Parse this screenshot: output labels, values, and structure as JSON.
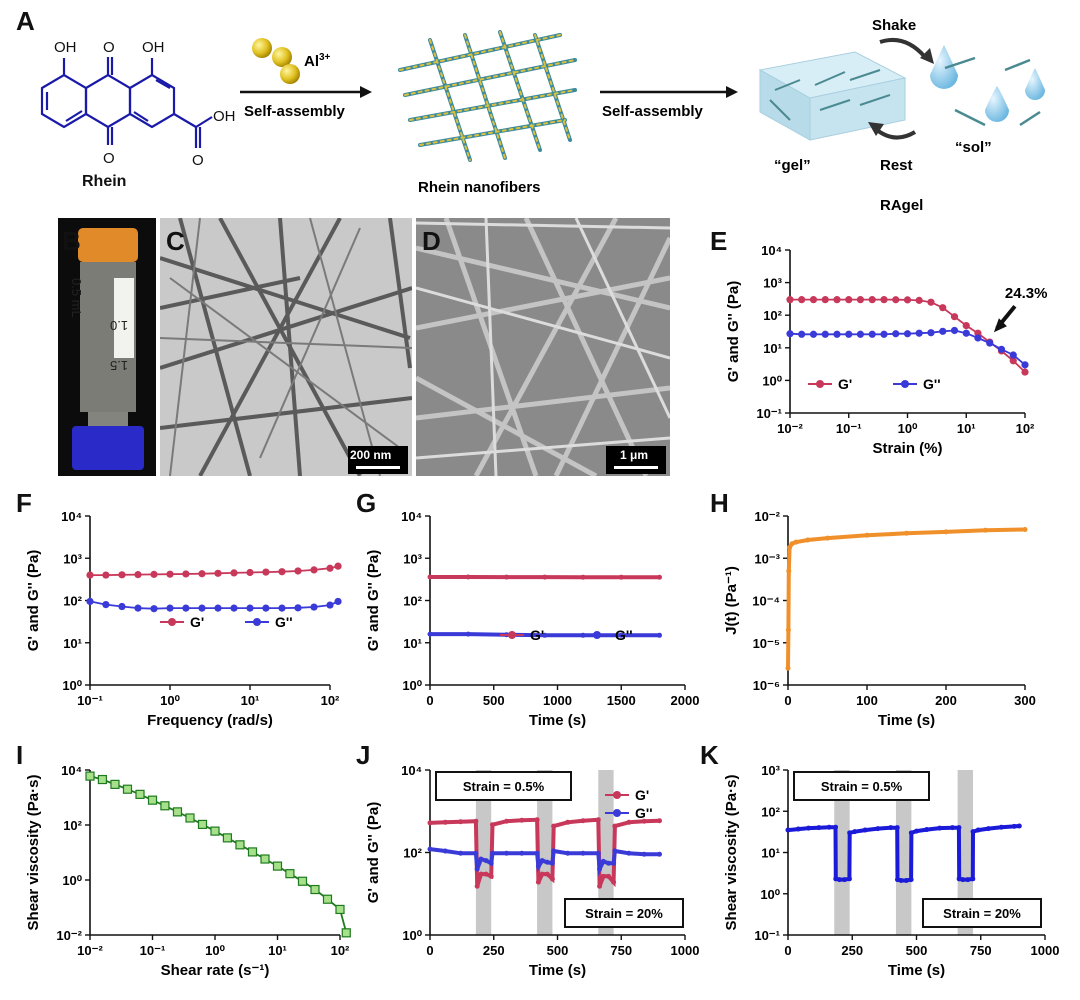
{
  "panels": {
    "A": "A",
    "B": "B",
    "C": "C",
    "D": "D",
    "E": "E",
    "F": "F",
    "G": "G",
    "H": "H",
    "I": "I",
    "J": "J",
    "K": "K"
  },
  "scheme": {
    "rhein_label": "Rhein",
    "oh_left": "OH",
    "oh_right": "OH",
    "o_top": "O",
    "o_bottom": "O",
    "acid": "OH",
    "acid_o": "O",
    "al_label": "Al",
    "al_sup": "3+",
    "step1": "Self-assembly",
    "nanofibers": "Rhein nanofibers",
    "step2": "Self-assembly",
    "shake": "Shake",
    "rest": "Rest",
    "gel": "“gel”",
    "sol": "“sol”",
    "ragel": "RAgel"
  },
  "images": {
    "vial_marks": [
      "0.5 mL",
      "1.0",
      "1.5"
    ],
    "tem_scale": "200 nm",
    "sem_scale": "1 μm"
  },
  "colors": {
    "gprime": "#c8385a",
    "gdouble": "#3a3ad8",
    "jt": "#f0902a",
    "visc": "#1a1ad8",
    "shear": "#1e7a1e",
    "shear_fill": "#a6e08a",
    "band": "#c8c8c8"
  },
  "chart_data": [
    {
      "id": "E",
      "type": "line",
      "xscale": "log",
      "yscale": "log",
      "xlabel": "Strain (%)",
      "ylabel": "G' and G'' (Pa)",
      "xlim": [
        0.01,
        100
      ],
      "ylim": [
        0.1,
        10000
      ],
      "xticks": [
        "10⁻²",
        "10⁻¹",
        "10⁰",
        "10¹",
        "10²"
      ],
      "yticks": [
        "10⁻¹",
        "10⁰",
        "10¹",
        "10²",
        "10³",
        "10⁴"
      ],
      "annotation": "24.3%",
      "annotation_x": 24.3,
      "legend": [
        "G'",
        "G''"
      ],
      "series": [
        {
          "name": "G'",
          "x": [
            0.01,
            0.0158,
            0.0251,
            0.0398,
            0.0631,
            0.1,
            0.158,
            0.251,
            0.398,
            0.631,
            1,
            1.58,
            2.51,
            3.98,
            6.31,
            10,
            15.8,
            25.1,
            39.8,
            63.1,
            100
          ],
          "values": [
            300,
            300,
            300,
            300,
            300,
            300,
            300,
            300,
            300,
            298,
            295,
            285,
            250,
            170,
            90,
            48,
            28,
            15,
            8,
            4,
            1.8
          ]
        },
        {
          "name": "G''",
          "x": [
            0.01,
            0.0158,
            0.0251,
            0.0398,
            0.0631,
            0.1,
            0.158,
            0.251,
            0.398,
            0.631,
            1,
            1.58,
            2.51,
            3.98,
            6.31,
            10,
            15.8,
            25.1,
            39.8,
            63.1,
            100
          ],
          "values": [
            27,
            26,
            26,
            26,
            26,
            26,
            26,
            26,
            26,
            27,
            27,
            28,
            29,
            32,
            34,
            28,
            20,
            14,
            9,
            6,
            3
          ]
        }
      ]
    },
    {
      "id": "F",
      "type": "line",
      "xscale": "log",
      "yscale": "log",
      "xlabel": "Frequency (rad/s)",
      "ylabel": "G' and G'' (Pa)",
      "xlim": [
        0.1,
        100
      ],
      "ylim": [
        1,
        10000
      ],
      "xticks": [
        "10⁻¹",
        "10⁰",
        "10¹",
        "10²"
      ],
      "yticks": [
        "10⁰",
        "10¹",
        "10²",
        "10³",
        "10⁴"
      ],
      "legend": [
        "G'",
        "G''"
      ],
      "series": [
        {
          "name": "G'",
          "x": [
            0.1,
            0.158,
            0.251,
            0.398,
            0.631,
            1,
            1.58,
            2.51,
            3.98,
            6.31,
            10,
            15.8,
            25.1,
            39.8,
            63.1,
            100,
            126
          ],
          "values": [
            400,
            400,
            405,
            410,
            415,
            420,
            425,
            430,
            440,
            450,
            460,
            470,
            480,
            500,
            530,
            580,
            650
          ]
        },
        {
          "name": "G''",
          "x": [
            0.1,
            0.158,
            0.251,
            0.398,
            0.631,
            1,
            1.58,
            2.51,
            3.98,
            6.31,
            10,
            15.8,
            25.1,
            39.8,
            63.1,
            100,
            126
          ],
          "values": [
            95,
            80,
            72,
            66,
            64,
            66,
            66,
            66,
            66,
            66,
            66,
            66,
            66,
            67,
            70,
            78,
            95
          ]
        }
      ]
    },
    {
      "id": "G",
      "type": "line",
      "yscale": "log",
      "xlabel": "Time (s)",
      "ylabel": "G' and G'' (Pa)",
      "xlim": [
        0,
        2000
      ],
      "ylim": [
        1,
        10000
      ],
      "xticks": [
        "0",
        "500",
        "1000",
        "1500",
        "2000"
      ],
      "yticks": [
        "10⁰",
        "10¹",
        "10²",
        "10³",
        "10⁴"
      ],
      "legend": [
        "G'",
        "G''"
      ],
      "series": [
        {
          "name": "G'",
          "x": [
            0,
            300,
            600,
            900,
            1200,
            1500,
            1800
          ],
          "values": [
            360,
            360,
            358,
            358,
            356,
            356,
            355
          ]
        },
        {
          "name": "G''",
          "x": [
            0,
            300,
            600,
            900,
            1200,
            1500,
            1800
          ],
          "values": [
            16,
            16,
            15.5,
            15,
            15,
            15,
            15
          ]
        }
      ]
    },
    {
      "id": "H",
      "type": "line",
      "yscale": "log",
      "xlabel": "Time (s)",
      "ylabel": "J(t) (Pa⁻¹)",
      "xlim": [
        0,
        300
      ],
      "ylim": [
        1e-06,
        0.01
      ],
      "xticks": [
        "0",
        "100",
        "200",
        "300"
      ],
      "yticks": [
        "10⁻⁶",
        "10⁻⁵",
        "10⁻⁴",
        "10⁻³",
        "10⁻²"
      ],
      "series": [
        {
          "name": "",
          "x": [
            0,
            0.5,
            1,
            2,
            5,
            10,
            25,
            50,
            100,
            150,
            200,
            250,
            300
          ],
          "values": [
            2.5e-06,
            2e-05,
            0.0005,
            0.0018,
            0.0022,
            0.0024,
            0.0027,
            0.003,
            0.0035,
            0.0039,
            0.0042,
            0.0046,
            0.0048
          ]
        }
      ]
    },
    {
      "id": "I",
      "type": "line",
      "xscale": "log",
      "yscale": "log",
      "xlabel": "Shear rate (s⁻¹)",
      "ylabel": "Shear viscosity (Pa·s)",
      "xlim": [
        0.01,
        100
      ],
      "ylim": [
        0.01,
        10000
      ],
      "xticks": [
        "10⁻²",
        "10⁻¹",
        "10⁰",
        "10¹",
        "10²"
      ],
      "yticks": [
        "10⁻²",
        "10⁰",
        "10²",
        "10⁴"
      ],
      "series": [
        {
          "name": "",
          "x": [
            0.01,
            0.0158,
            0.0251,
            0.0398,
            0.0631,
            0.1,
            0.158,
            0.251,
            0.398,
            0.631,
            1,
            1.58,
            2.51,
            3.98,
            6.31,
            10,
            15.8,
            25.1,
            39.8,
            63.1,
            100,
            126
          ],
          "values": [
            6000,
            4500,
            3000,
            2000,
            1300,
            800,
            500,
            300,
            180,
            105,
            60,
            34,
            19,
            10.5,
            5.8,
            3.2,
            1.7,
            0.9,
            0.45,
            0.2,
            0.085,
            0.012
          ]
        }
      ]
    },
    {
      "id": "J",
      "type": "line",
      "yscale": "log",
      "xlabel": "Time (s)",
      "ylabel": "G' and G'' (Pa)",
      "xlim": [
        0,
        1000
      ],
      "ylim": [
        0.1,
        10000
      ],
      "xticks": [
        "0",
        "250",
        "500",
        "750",
        "1000"
      ],
      "yticks": [
        "10⁰",
        "10²",
        "10⁴"
      ],
      "annotations": [
        "Strain = 0.5%",
        "Strain = 20%"
      ],
      "bands": [
        [
          180,
          240
        ],
        [
          420,
          480
        ],
        [
          660,
          720
        ]
      ],
      "legend": [
        "G'",
        "G''"
      ],
      "series": [
        {
          "name": "G'",
          "x": [
            0,
            60,
            120,
            180,
            185,
            200,
            220,
            240,
            245,
            300,
            360,
            420,
            425,
            440,
            460,
            480,
            485,
            540,
            600,
            660,
            665,
            680,
            700,
            720,
            725,
            780,
            840,
            900
          ],
          "values": [
            250,
            260,
            270,
            280,
            3,
            7,
            7,
            6,
            220,
            280,
            300,
            310,
            4,
            7,
            7,
            5,
            200,
            260,
            290,
            310,
            3,
            6,
            6,
            4,
            200,
            260,
            280,
            290
          ]
        },
        {
          "name": "G''",
          "x": [
            0,
            60,
            120,
            180,
            185,
            200,
            220,
            240,
            245,
            300,
            360,
            420,
            425,
            440,
            460,
            480,
            485,
            540,
            600,
            660,
            665,
            680,
            700,
            720,
            725,
            780,
            840,
            900
          ],
          "values": [
            40,
            35,
            30,
            30,
            10,
            20,
            18,
            15,
            30,
            30,
            30,
            30,
            12,
            18,
            16,
            15,
            35,
            30,
            30,
            30,
            10,
            17,
            15,
            15,
            35,
            30,
            28,
            28
          ]
        }
      ]
    },
    {
      "id": "K",
      "type": "line",
      "yscale": "log",
      "xlabel": "Time (s)",
      "ylabel": "Shear viscosity (Pa·s)",
      "xlim": [
        0,
        1000
      ],
      "ylim": [
        0.1,
        1000
      ],
      "xticks": [
        "0",
        "250",
        "500",
        "750",
        "1000"
      ],
      "yticks": [
        "10⁻¹",
        "10⁰",
        "10¹",
        "10²",
        "10³"
      ],
      "annotations": [
        "Strain = 0.5%",
        "Strain = 20%"
      ],
      "bands": [
        [
          180,
          240
        ],
        [
          420,
          480
        ],
        [
          660,
          720
        ]
      ],
      "series": [
        {
          "name": "",
          "x": [
            0,
            40,
            80,
            120,
            160,
            185,
            186,
            200,
            220,
            239,
            240,
            260,
            300,
            350,
            400,
            425,
            426,
            440,
            460,
            479,
            480,
            500,
            540,
            590,
            640,
            665,
            666,
            680,
            700,
            719,
            720,
            740,
            780,
            830,
            880,
            900
          ],
          "values": [
            35,
            37,
            39,
            40,
            41,
            41,
            2.3,
            2.2,
            2.2,
            2.3,
            30,
            32,
            35,
            38,
            40,
            40,
            2.2,
            2.1,
            2.1,
            2.2,
            30,
            33,
            36,
            39,
            40,
            40,
            2.3,
            2.2,
            2.2,
            2.3,
            32,
            35,
            38,
            41,
            43,
            44
          ]
        }
      ]
    }
  ]
}
